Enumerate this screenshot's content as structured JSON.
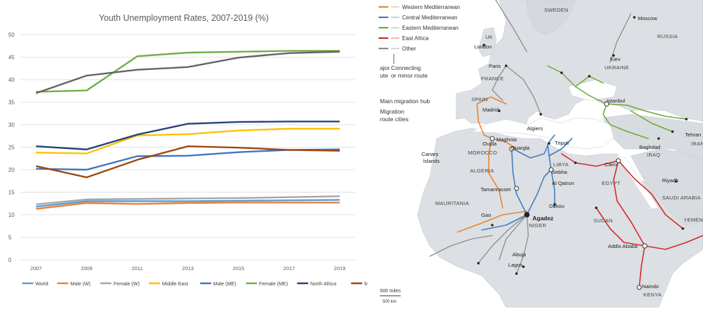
{
  "chart_data": {
    "type": "line",
    "title": "Youth Unemployment Rates, 2007-2019 (%)",
    "xlabel": "",
    "ylabel": "",
    "ylim": [
      0,
      50
    ],
    "yticks": [
      0,
      5,
      10,
      15,
      20,
      25,
      30,
      35,
      40,
      45,
      50
    ],
    "x": [
      "2007",
      "2009",
      "2011",
      "2013",
      "2015",
      "2017",
      "2019"
    ],
    "grid": true,
    "legend_position": "bottom",
    "series": [
      {
        "name": "World",
        "color": "#5b9bd5",
        "values": [
          11.8,
          13.0,
          13.0,
          13.0,
          13.1,
          13.2,
          13.3
        ]
      },
      {
        "name": "Male (W)",
        "color": "#ed7d31",
        "values": [
          11.3,
          12.6,
          12.4,
          12.6,
          12.7,
          12.7,
          12.7
        ]
      },
      {
        "name": "Female (W)",
        "color": "#a5a5a5",
        "values": [
          12.3,
          13.4,
          13.5,
          13.6,
          13.7,
          13.9,
          14.1
        ]
      },
      {
        "name": "Middle East",
        "color": "#ffc000",
        "values": [
          23.8,
          23.6,
          27.6,
          27.9,
          28.7,
          29.1,
          29.1
        ]
      },
      {
        "name": "Male (ME)",
        "color": "#4472c4",
        "values": [
          20.2,
          20.0,
          23.0,
          23.1,
          23.9,
          24.4,
          24.5
        ]
      },
      {
        "name": "Female (ME)",
        "color": "#70ad47",
        "values": [
          37.3,
          37.6,
          45.2,
          46.0,
          46.2,
          46.4,
          46.4
        ]
      },
      {
        "name": "North Africa",
        "color": "#264478",
        "values": [
          25.2,
          24.5,
          27.8,
          30.2,
          30.6,
          30.7,
          30.7
        ]
      },
      {
        "name": "Male (NA)",
        "color": "#9e480e",
        "values": [
          20.8,
          18.3,
          22.2,
          25.2,
          24.9,
          24.4,
          24.2
        ]
      },
      {
        "name": "Female (NA)",
        "color": "#636363",
        "values": [
          37.0,
          40.9,
          42.2,
          42.8,
          44.9,
          45.9,
          46.2
        ]
      }
    ]
  },
  "map": {
    "legend": {
      "routes": [
        {
          "label": "Western Mediterranean",
          "color": "#e8852f"
        },
        {
          "label": "Central Mediterranean",
          "color": "#3f7fbf"
        },
        {
          "label": "Eastern Mediterranean",
          "color": "#6aaa35"
        },
        {
          "label": "East Africa",
          "color": "#d42a2a"
        },
        {
          "label": "Other",
          "color": "#8c8c8c"
        }
      ],
      "major_route_label": "ajor\nute",
      "minor_route_label": "Connecting\nor minor route",
      "hub_label": "Main migration hub",
      "cities_label": "Migration\nroute cities"
    },
    "labels": {
      "countries": [
        "SWEDEN",
        "RUSSIA",
        "UK",
        "UKRAINE",
        "FRANCE",
        "SPAIN",
        "MOROCCO",
        "ALGERIA",
        "LIBYA",
        "EGYPT",
        "MAURITANIA",
        "NIGER",
        "SUDAN",
        "SAUDI ARABIA",
        "YEMEN",
        "KENYA",
        "IRAQ",
        "IRAN"
      ],
      "cities": [
        "Moscow",
        "London",
        "Kiev",
        "Paris",
        "Istanbul",
        "Madrid",
        "Algiers",
        "Tripoli",
        "Oujda",
        "Maghnia",
        "Ouargla",
        "Tehran",
        "Baghdad",
        "Cairo",
        "Sebha",
        "Al Qatrun",
        "Riyadh",
        "Tamanrasset",
        "Dirkou",
        "Gao",
        "Agadez",
        "Abuja",
        "Lagos",
        "Addis Ababa",
        "Nairobi"
      ],
      "regions": [
        "Canary\nIslands"
      ]
    },
    "scale_label": "500 miles",
    "scale_sublabel": "500 km"
  }
}
